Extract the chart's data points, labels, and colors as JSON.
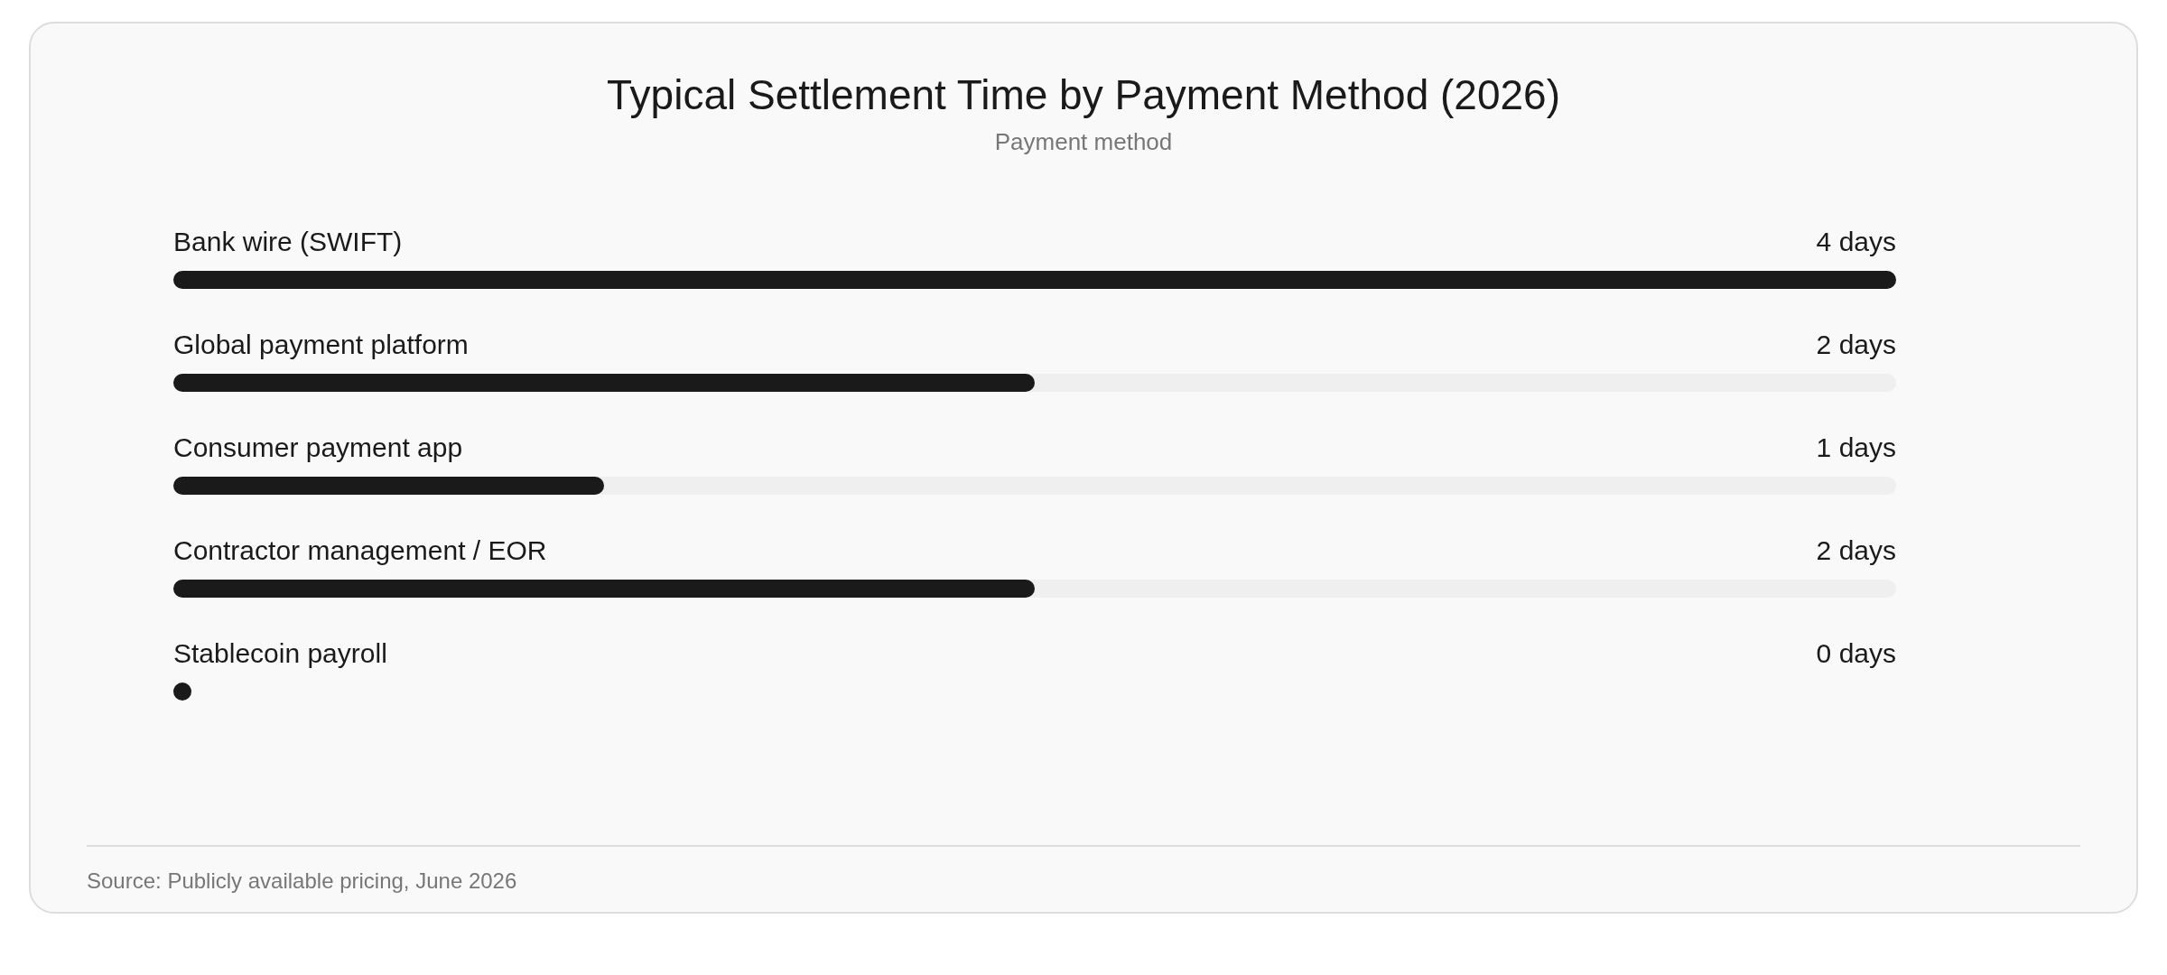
{
  "chart_data": {
    "type": "bar",
    "orientation": "horizontal",
    "title": "Typical Settlement Time by Payment Method (2026)",
    "subtitle": "Payment method",
    "categories": [
      "Bank wire (SWIFT)",
      "Global payment platform",
      "Consumer payment app",
      "Contractor management / EOR",
      "Stablecoin payroll"
    ],
    "values": [
      4,
      2,
      1,
      2,
      0
    ],
    "value_labels": [
      "4 days",
      "2 days",
      "1 days",
      "2 days",
      "0 days"
    ],
    "color": "#1a1a1a",
    "annotations": [
      "Source: Publicly available pricing, June 2026"
    ]
  }
}
